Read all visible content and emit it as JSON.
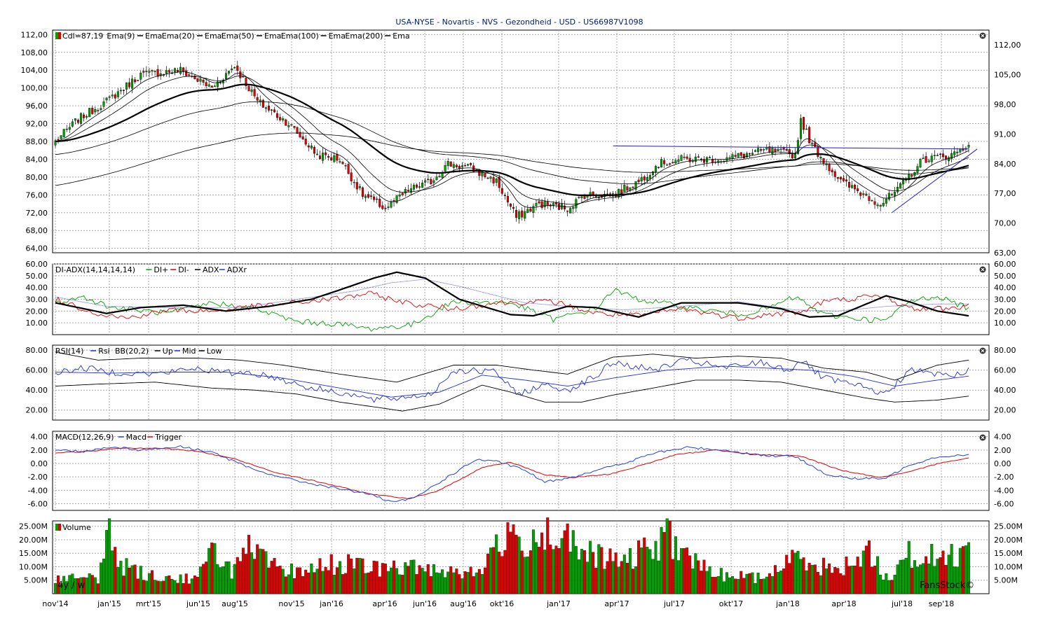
{
  "chart_data": {
    "title": "USA-NYSE - Novartis - NVS - Gezondheid - USD - US66987V1098",
    "type": "candlestick",
    "x_labels": [
      "nov'14",
      "jan'15",
      "mrt'15",
      "jun'15",
      "aug'15",
      "nov'15",
      "jan'16",
      "apr'16",
      "jun'16",
      "aug'16",
      "okt'16",
      "jan'17",
      "apr'17",
      "jul'17",
      "okt'17",
      "jan'18",
      "apr'18",
      "jul'18",
      "sep'18"
    ],
    "range_label": "4y / w",
    "watermark": "FansStock©",
    "price": {
      "legend": [
        "Cdl=87,19",
        "Ema(9)",
        "Ema",
        "Ema(20)",
        "Ema",
        "Ema(50)",
        "Ema",
        "Ema(100)",
        "Ema",
        "Ema(200)",
        "Ema"
      ],
      "left_ticks": [
        "112,00",
        "108,00",
        "104,00",
        "100,00",
        "96,00",
        "92,00",
        "88,00",
        "84,00",
        "80,00",
        "76,00",
        "72,00",
        "68,00",
        "64,00"
      ],
      "right_ticks": [
        "112,00",
        "105,00",
        "98,00",
        "91,00",
        "84,00",
        "77,00",
        "70,00",
        "63,00"
      ],
      "ylim": [
        63,
        113
      ],
      "close_anchors": [
        [
          0,
          88
        ],
        [
          8,
          93
        ],
        [
          18,
          97
        ],
        [
          30,
          103
        ],
        [
          44,
          104
        ],
        [
          55,
          100
        ],
        [
          63,
          105
        ],
        [
          71,
          97
        ],
        [
          82,
          92
        ],
        [
          92,
          85
        ],
        [
          100,
          84
        ],
        [
          108,
          76
        ],
        [
          116,
          73
        ],
        [
          124,
          77
        ],
        [
          132,
          79
        ],
        [
          138,
          83
        ],
        [
          146,
          82
        ],
        [
          155,
          79
        ],
        [
          162,
          71
        ],
        [
          170,
          74
        ],
        [
          180,
          73
        ],
        [
          186,
          76
        ],
        [
          196,
          76
        ],
        [
          205,
          79
        ],
        [
          212,
          83
        ],
        [
          220,
          84
        ],
        [
          235,
          84
        ],
        [
          250,
          86
        ],
        [
          260,
          85
        ],
        [
          262,
          93
        ],
        [
          266,
          87
        ],
        [
          276,
          79
        ],
        [
          290,
          74
        ],
        [
          296,
          77
        ],
        [
          305,
          84
        ],
        [
          315,
          85
        ],
        [
          321,
          87.19
        ]
      ],
      "ema_lines": [
        {
          "period": 9,
          "width": 0.8
        },
        {
          "period": 20,
          "width": 0.8
        },
        {
          "period": 50,
          "width": 2.2
        },
        {
          "period": 100,
          "width": 0.8
        },
        {
          "period": 200,
          "width": 0.8
        }
      ],
      "ema_start": {
        "100": 85,
        "200": 78
      },
      "trendlines": [
        {
          "from": [
            196,
            87
          ],
          "to": [
            321,
            86.3
          ],
          "color": "#2020c0"
        },
        {
          "from": [
            294,
            72
          ],
          "to": [
            324,
            86.3
          ],
          "color": "#2020c0"
        }
      ],
      "up_color": "#00a000",
      "down_color": "#e00000"
    },
    "adx": {
      "legend": [
        "DI-ADX(14,14,14,14)",
        "DI+",
        "DI-",
        "ADX",
        "ADXr"
      ],
      "ticks": [
        "60.00",
        "50.00",
        "40.00",
        "30.00",
        "20.00",
        "10.00"
      ],
      "ylim": [
        0,
        60
      ],
      "di_plus_anchors": [
        [
          0,
          27
        ],
        [
          10,
          32
        ],
        [
          20,
          23
        ],
        [
          40,
          18
        ],
        [
          55,
          27
        ],
        [
          70,
          22
        ],
        [
          85,
          11
        ],
        [
          100,
          9
        ],
        [
          110,
          5
        ],
        [
          125,
          8
        ],
        [
          140,
          28
        ],
        [
          160,
          27
        ],
        [
          175,
          13
        ],
        [
          190,
          22
        ],
        [
          196,
          38
        ],
        [
          205,
          30
        ],
        [
          220,
          24
        ],
        [
          240,
          17
        ],
        [
          250,
          22
        ],
        [
          260,
          32
        ],
        [
          270,
          17
        ],
        [
          285,
          13
        ],
        [
          292,
          12
        ],
        [
          300,
          28
        ],
        [
          310,
          33
        ],
        [
          321,
          22
        ]
      ],
      "di_minus_anchors": [
        [
          0,
          30
        ],
        [
          15,
          18
        ],
        [
          25,
          14
        ],
        [
          40,
          21
        ],
        [
          55,
          20
        ],
        [
          70,
          24
        ],
        [
          85,
          27
        ],
        [
          100,
          31
        ],
        [
          110,
          35
        ],
        [
          125,
          26
        ],
        [
          140,
          22
        ],
        [
          155,
          27
        ],
        [
          175,
          28
        ],
        [
          190,
          18
        ],
        [
          205,
          16
        ],
        [
          220,
          22
        ],
        [
          240,
          14
        ],
        [
          250,
          17
        ],
        [
          262,
          19
        ],
        [
          270,
          28
        ],
        [
          285,
          32
        ],
        [
          292,
          32
        ],
        [
          300,
          22
        ],
        [
          310,
          22
        ],
        [
          321,
          24
        ]
      ],
      "adx_anchors": [
        [
          0,
          27
        ],
        [
          8,
          23
        ],
        [
          18,
          18
        ],
        [
          30,
          23
        ],
        [
          45,
          25
        ],
        [
          60,
          20
        ],
        [
          75,
          24
        ],
        [
          90,
          30
        ],
        [
          100,
          38
        ],
        [
          112,
          48
        ],
        [
          120,
          53
        ],
        [
          130,
          48
        ],
        [
          142,
          30
        ],
        [
          160,
          17
        ],
        [
          168,
          16
        ],
        [
          180,
          24
        ],
        [
          190,
          23
        ],
        [
          205,
          15
        ],
        [
          220,
          27
        ],
        [
          240,
          27
        ],
        [
          255,
          22
        ],
        [
          265,
          15
        ],
        [
          275,
          16
        ],
        [
          292,
          33
        ],
        [
          300,
          28
        ],
        [
          310,
          20
        ],
        [
          321,
          16
        ]
      ],
      "adxr_anchors": [
        [
          0,
          32
        ],
        [
          18,
          24
        ],
        [
          40,
          23
        ],
        [
          65,
          23
        ],
        [
          85,
          30
        ],
        [
          105,
          37
        ],
        [
          118,
          44
        ],
        [
          130,
          47
        ],
        [
          142,
          41
        ],
        [
          165,
          27
        ],
        [
          180,
          24
        ],
        [
          200,
          21
        ],
        [
          220,
          24
        ],
        [
          240,
          28
        ],
        [
          260,
          21
        ],
        [
          275,
          20
        ],
        [
          292,
          24
        ],
        [
          310,
          26
        ],
        [
          321,
          26
        ]
      ],
      "colors": {
        "di_plus": "#00a000",
        "di_minus": "#e00000",
        "adx": "#000000",
        "adxr": "#3030d0"
      }
    },
    "rsi": {
      "legend": [
        "RSI(14)",
        "Rsi",
        "BB(20,2)",
        "Up",
        "Mid",
        "Low"
      ],
      "ticks": [
        "80.00",
        "60.00",
        "40.00",
        "20.00"
      ],
      "ylim": [
        10,
        85
      ],
      "rsi_anchors": [
        [
          0,
          58
        ],
        [
          10,
          62
        ],
        [
          20,
          58
        ],
        [
          35,
          56
        ],
        [
          50,
          62
        ],
        [
          60,
          57
        ],
        [
          68,
          58
        ],
        [
          78,
          52
        ],
        [
          90,
          42
        ],
        [
          100,
          38
        ],
        [
          112,
          30
        ],
        [
          120,
          32
        ],
        [
          132,
          36
        ],
        [
          140,
          60
        ],
        [
          155,
          58
        ],
        [
          162,
          36
        ],
        [
          172,
          45
        ],
        [
          180,
          40
        ],
        [
          190,
          54
        ],
        [
          196,
          68
        ],
        [
          210,
          60
        ],
        [
          222,
          70
        ],
        [
          235,
          62
        ],
        [
          248,
          68
        ],
        [
          258,
          60
        ],
        [
          262,
          70
        ],
        [
          270,
          52
        ],
        [
          285,
          42
        ],
        [
          292,
          36
        ],
        [
          300,
          60
        ],
        [
          310,
          56
        ],
        [
          318,
          55
        ],
        [
          321,
          61
        ]
      ],
      "bb_mid_anchors": [
        [
          0,
          58
        ],
        [
          20,
          57
        ],
        [
          40,
          58
        ],
        [
          60,
          58
        ],
        [
          80,
          52
        ],
        [
          100,
          42
        ],
        [
          118,
          33
        ],
        [
          135,
          38
        ],
        [
          150,
          55
        ],
        [
          165,
          50
        ],
        [
          180,
          44
        ],
        [
          196,
          52
        ],
        [
          215,
          60
        ],
        [
          235,
          64
        ],
        [
          250,
          62
        ],
        [
          265,
          60
        ],
        [
          280,
          54
        ],
        [
          295,
          44
        ],
        [
          310,
          50
        ],
        [
          321,
          54
        ]
      ],
      "bb_up_anchors": [
        [
          0,
          78
        ],
        [
          15,
          70
        ],
        [
          30,
          72
        ],
        [
          50,
          72
        ],
        [
          65,
          70
        ],
        [
          80,
          65
        ],
        [
          100,
          56
        ],
        [
          120,
          48
        ],
        [
          140,
          65
        ],
        [
          155,
          65
        ],
        [
          168,
          60
        ],
        [
          180,
          56
        ],
        [
          196,
          73
        ],
        [
          210,
          76
        ],
        [
          225,
          72
        ],
        [
          240,
          74
        ],
        [
          255,
          72
        ],
        [
          270,
          62
        ],
        [
          285,
          58
        ],
        [
          295,
          50
        ],
        [
          310,
          65
        ],
        [
          321,
          70
        ]
      ],
      "bb_low_anchors": [
        [
          0,
          44
        ],
        [
          15,
          46
        ],
        [
          35,
          48
        ],
        [
          55,
          42
        ],
        [
          70,
          40
        ],
        [
          85,
          36
        ],
        [
          100,
          28
        ],
        [
          115,
          22
        ],
        [
          122,
          19
        ],
        [
          135,
          26
        ],
        [
          150,
          45
        ],
        [
          160,
          38
        ],
        [
          172,
          28
        ],
        [
          185,
          28
        ],
        [
          196,
          35
        ],
        [
          210,
          42
        ],
        [
          225,
          50
        ],
        [
          240,
          50
        ],
        [
          255,
          48
        ],
        [
          270,
          40
        ],
        [
          285,
          32
        ],
        [
          295,
          28
        ],
        [
          310,
          30
        ],
        [
          321,
          34
        ]
      ]
    },
    "macd": {
      "legend": [
        "MACD(12,26,9)",
        "Macd",
        "Trigger"
      ],
      "ticks": [
        "4.00",
        "2.00",
        "0.00",
        "-2.00",
        "-4.00",
        "-6.00"
      ],
      "ylim": [
        -7,
        4.8
      ],
      "macd_anchors": [
        [
          0,
          2
        ],
        [
          10,
          1.8
        ],
        [
          20,
          2.5
        ],
        [
          30,
          2.0
        ],
        [
          44,
          2.5
        ],
        [
          55,
          1.7
        ],
        [
          70,
          -1.0
        ],
        [
          85,
          -2.6
        ],
        [
          100,
          -3.8
        ],
        [
          110,
          -4.5
        ],
        [
          118,
          -5.8
        ],
        [
          126,
          -5.2
        ],
        [
          138,
          -2.0
        ],
        [
          148,
          0.6
        ],
        [
          156,
          0.2
        ],
        [
          165,
          -1.0
        ],
        [
          172,
          -2.8
        ],
        [
          182,
          -2.0
        ],
        [
          190,
          -1.0
        ],
        [
          200,
          0.0
        ],
        [
          210,
          1.5
        ],
        [
          222,
          2.4
        ],
        [
          235,
          2.0
        ],
        [
          248,
          1.2
        ],
        [
          260,
          1.0
        ],
        [
          272,
          -1.8
        ],
        [
          282,
          -2.3
        ],
        [
          292,
          -2.2
        ],
        [
          300,
          -0.2
        ],
        [
          310,
          1.0
        ],
        [
          321,
          1.3
        ]
      ],
      "trigger_anchors": [
        [
          0,
          1.6
        ],
        [
          12,
          1.8
        ],
        [
          22,
          2.3
        ],
        [
          36,
          2.3
        ],
        [
          50,
          1.8
        ],
        [
          62,
          0.8
        ],
        [
          78,
          -1.4
        ],
        [
          95,
          -3.0
        ],
        [
          110,
          -4.5
        ],
        [
          124,
          -5.3
        ],
        [
          135,
          -4.0
        ],
        [
          150,
          -0.6
        ],
        [
          160,
          0.2
        ],
        [
          172,
          -1.7
        ],
        [
          182,
          -2.1
        ],
        [
          195,
          -1.6
        ],
        [
          205,
          -0.4
        ],
        [
          218,
          1.3
        ],
        [
          232,
          2.0
        ],
        [
          248,
          1.3
        ],
        [
          262,
          1.1
        ],
        [
          276,
          -1.0
        ],
        [
          290,
          -2.1
        ],
        [
          300,
          -1.3
        ],
        [
          312,
          0.2
        ],
        [
          321,
          0.8
        ]
      ],
      "colors": {
        "macd": "#2040e0",
        "trigger": "#e00000"
      }
    },
    "volume": {
      "legend": [
        "Volume"
      ],
      "ticks": [
        "25.00M",
        "20.00M",
        "15.00M",
        "10.00M",
        "5.00M"
      ],
      "ylim": [
        0,
        27
      ],
      "anchors": [
        [
          0,
          6
        ],
        [
          15,
          6
        ],
        [
          19,
          25
        ],
        [
          22,
          12
        ],
        [
          30,
          8
        ],
        [
          40,
          6
        ],
        [
          50,
          6
        ],
        [
          56,
          18
        ],
        [
          62,
          9
        ],
        [
          68,
          17
        ],
        [
          80,
          8
        ],
        [
          100,
          12
        ],
        [
          110,
          10
        ],
        [
          130,
          10
        ],
        [
          150,
          8
        ],
        [
          155,
          22
        ],
        [
          160,
          20
        ],
        [
          175,
          24
        ],
        [
          185,
          16
        ],
        [
          200,
          12
        ],
        [
          215,
          22
        ],
        [
          230,
          8
        ],
        [
          248,
          6
        ],
        [
          262,
          15
        ],
        [
          275,
          8
        ],
        [
          285,
          18
        ],
        [
          292,
          6
        ],
        [
          300,
          15
        ],
        [
          312,
          14
        ],
        [
          321,
          17
        ]
      ],
      "up_color": "#00a000",
      "down_color": "#e00000"
    }
  }
}
